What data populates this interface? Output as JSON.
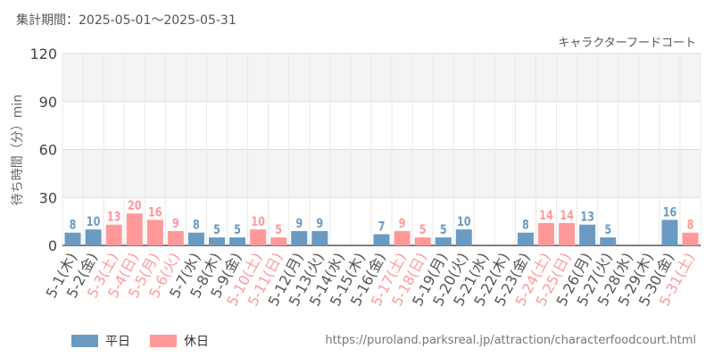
{
  "header": {
    "period": "集計期間：2025-05-01～2025-05-31"
  },
  "source_url": "https://puroland.parksreal.jp/attraction/characterfoodcourt.html",
  "colors": {
    "weekday": "#6a9ac2",
    "holiday": "#ff9999",
    "grid": "#e8e8e8",
    "band": "#f4f4f4"
  },
  "legend": [
    {
      "label": "平日",
      "key": "weekday"
    },
    {
      "label": "休日",
      "key": "holiday"
    }
  ],
  "chart_data": {
    "type": "bar",
    "title": "キャラクターフードコート",
    "ylabel": "待ち時間（分）min",
    "ylim": [
      0,
      120
    ],
    "yticks": [
      0,
      30,
      60,
      90,
      120
    ],
    "grid": true,
    "legend_position": "bottom-left",
    "categories": [
      "5-1(木)",
      "5-2(金)",
      "5-3(土)",
      "5-4(日)",
      "5-5(月)",
      "5-6(火)",
      "5-7(水)",
      "5-8(木)",
      "5-9(金)",
      "5-10(土)",
      "5-11(日)",
      "5-12(月)",
      "5-13(火)",
      "5-14(水)",
      "5-15(木)",
      "5-16(金)",
      "5-17(土)",
      "5-18(日)",
      "5-19(月)",
      "5-20(火)",
      "5-21(水)",
      "5-22(木)",
      "5-23(金)",
      "5-24(土)",
      "5-25(日)",
      "5-26(月)",
      "5-27(火)",
      "5-28(水)",
      "5-29(木)",
      "5-30(金)",
      "5-31(土)"
    ],
    "values": [
      8,
      10,
      13,
      20,
      16,
      9,
      8,
      5,
      5,
      10,
      5,
      9,
      9,
      null,
      null,
      7,
      9,
      5,
      5,
      10,
      null,
      null,
      8,
      14,
      14,
      13,
      5,
      null,
      null,
      16,
      8
    ],
    "day_type": [
      "weekday",
      "weekday",
      "holiday",
      "holiday",
      "holiday",
      "holiday",
      "weekday",
      "weekday",
      "weekday",
      "holiday",
      "holiday",
      "weekday",
      "weekday",
      "weekday",
      "weekday",
      "weekday",
      "holiday",
      "holiday",
      "weekday",
      "weekday",
      "weekday",
      "weekday",
      "weekday",
      "holiday",
      "holiday",
      "weekday",
      "weekday",
      "weekday",
      "weekday",
      "weekday",
      "holiday"
    ]
  }
}
